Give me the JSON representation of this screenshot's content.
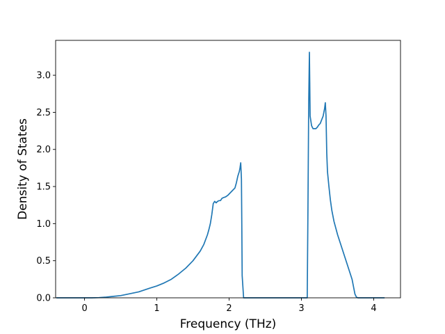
{
  "chart_data": {
    "type": "line",
    "title": "",
    "xlabel": "Frequency (THz)",
    "ylabel": "Density of States",
    "xlim": [
      -0.4,
      4.37
    ],
    "ylim": [
      0.0,
      3.47
    ],
    "xticks": [
      0,
      1,
      2,
      3,
      4
    ],
    "yticks": [
      0.0,
      0.5,
      1.0,
      1.5,
      2.0,
      2.5,
      3.0
    ],
    "xtick_labels": [
      "0",
      "1",
      "2",
      "3",
      "4"
    ],
    "ytick_labels": [
      "0.0",
      "0.5",
      "1.0",
      "1.5",
      "2.0",
      "2.5",
      "3.0"
    ],
    "grid": false,
    "legend": null,
    "series": [
      {
        "color": "#1f77b4",
        "x": [
          -0.39,
          -0.1,
          0.0,
          0.1,
          0.2,
          0.3,
          0.4,
          0.5,
          0.6,
          0.75,
          0.9,
          1.0,
          1.1,
          1.2,
          1.3,
          1.4,
          1.5,
          1.6,
          1.65,
          1.7,
          1.72,
          1.74,
          1.76,
          1.78,
          1.8,
          1.82,
          1.84,
          1.86,
          1.88,
          1.9,
          1.92,
          1.95,
          1.98,
          2.0,
          2.05,
          2.08,
          2.1,
          2.12,
          2.14,
          2.15,
          2.16,
          2.17,
          2.175,
          2.18,
          2.2,
          2.5,
          2.8,
          3.0,
          3.07,
          3.08,
          3.09,
          3.1,
          3.11,
          3.115,
          3.12,
          3.14,
          3.16,
          3.18,
          3.2,
          3.22,
          3.24,
          3.26,
          3.28,
          3.3,
          3.32,
          3.33,
          3.34,
          3.35,
          3.36,
          3.38,
          3.4,
          3.42,
          3.45,
          3.5,
          3.55,
          3.6,
          3.65,
          3.7,
          3.72,
          3.74,
          3.76,
          3.78,
          3.8,
          4.15
        ],
        "y": [
          0.0,
          0.0,
          0.0,
          0.0,
          0.003,
          0.01,
          0.02,
          0.03,
          0.05,
          0.08,
          0.13,
          0.16,
          0.2,
          0.25,
          0.32,
          0.4,
          0.5,
          0.63,
          0.72,
          0.85,
          0.92,
          1.0,
          1.12,
          1.27,
          1.3,
          1.28,
          1.3,
          1.31,
          1.31,
          1.34,
          1.35,
          1.36,
          1.38,
          1.4,
          1.45,
          1.48,
          1.55,
          1.64,
          1.7,
          1.75,
          1.82,
          1.6,
          1.0,
          0.3,
          0.0,
          0.0,
          0.0,
          0.0,
          0.0,
          0.0,
          1.2,
          2.6,
          3.31,
          2.9,
          2.45,
          2.32,
          2.28,
          2.28,
          2.28,
          2.3,
          2.33,
          2.35,
          2.4,
          2.45,
          2.55,
          2.63,
          2.45,
          1.95,
          1.7,
          1.5,
          1.32,
          1.18,
          1.03,
          0.85,
          0.7,
          0.55,
          0.4,
          0.25,
          0.15,
          0.05,
          0.01,
          0.0,
          0.0,
          0.0
        ]
      }
    ]
  }
}
